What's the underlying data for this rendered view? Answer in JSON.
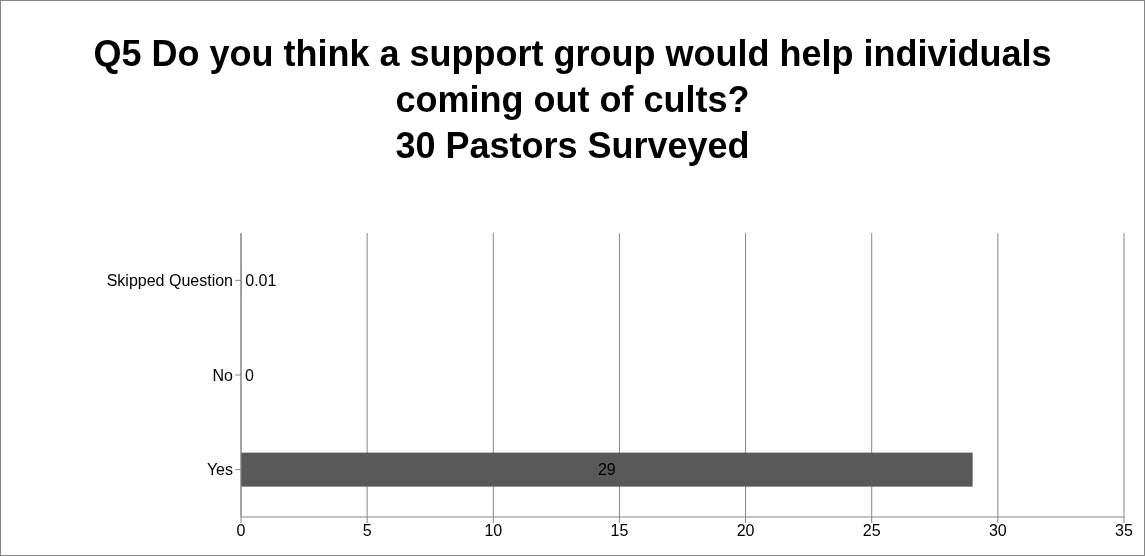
{
  "chart_data": {
    "type": "bar",
    "orientation": "horizontal",
    "title": "Q5 Do you think a support group would help individuals coming out of cults?",
    "subtitle": "30 Pastors Surveyed",
    "categories": [
      "Skipped Question",
      "No",
      "Yes"
    ],
    "values": [
      0.01,
      0,
      29
    ],
    "color": "#595959",
    "xlim": [
      0,
      35
    ],
    "xticks": [
      0,
      5,
      10,
      15,
      20,
      25,
      30,
      35
    ],
    "grid": "x",
    "data_labels": true
  }
}
